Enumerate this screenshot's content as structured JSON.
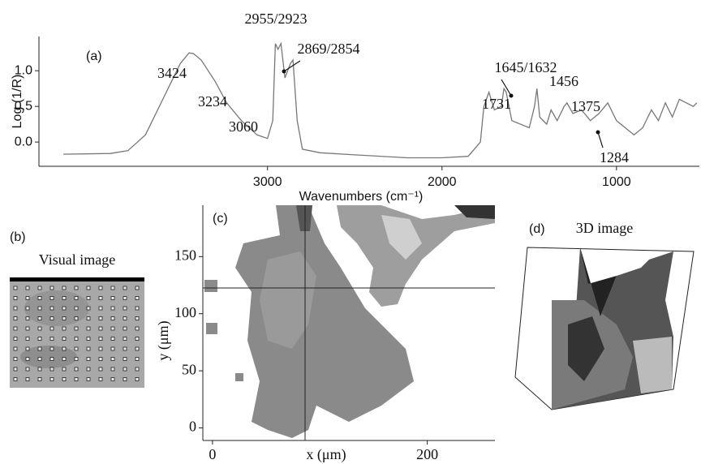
{
  "chart_data": [
    {
      "type": "line",
      "label": "(a)",
      "x_label": "Wavenumbers (cm⁻¹)",
      "y_label": "Log (1/R)",
      "xlim": [
        4310,
        525
      ],
      "ylim": [
        -0.34,
        1.48
      ],
      "xticks": [
        3000,
        2000,
        1000
      ],
      "yticks": [
        {
          "value": 0,
          "label": "0.0"
        },
        0.5,
        {
          "value": 1,
          "label": "1.0"
        }
      ],
      "color": "#777777",
      "x": [
        4170,
        3900,
        3800,
        3700,
        3600,
        3500,
        3450,
        3424,
        3380,
        3300,
        3234,
        3150,
        3060,
        3000,
        2970,
        2955,
        2940,
        2923,
        2900,
        2869,
        2854,
        2830,
        2800,
        2700,
        2500,
        2200,
        2000,
        1850,
        1780,
        1760,
        1731,
        1700,
        1660,
        1645,
        1632,
        1600,
        1500,
        1470,
        1456,
        1440,
        1400,
        1375,
        1340,
        1300,
        1284,
        1250,
        1200,
        1150,
        1100,
        1050,
        1000,
        950,
        900,
        850,
        800,
        760,
        720,
        680,
        640,
        560,
        540
      ],
      "values": [
        -0.17,
        -0.16,
        -0.12,
        0.1,
        0.6,
        1.1,
        1.25,
        1.24,
        1.15,
        0.85,
        0.55,
        0.3,
        0.1,
        0.05,
        0.3,
        1.38,
        1.3,
        1.38,
        0.9,
        1.1,
        1.15,
        0.3,
        -0.1,
        -0.15,
        -0.18,
        -0.22,
        -0.22,
        -0.2,
        0.0,
        0.5,
        0.7,
        0.45,
        0.5,
        0.75,
        0.7,
        0.3,
        0.2,
        0.5,
        0.75,
        0.35,
        0.25,
        0.45,
        0.3,
        0.5,
        0.55,
        0.4,
        0.45,
        0.3,
        0.4,
        0.55,
        0.3,
        0.2,
        0.1,
        0.2,
        0.45,
        0.3,
        0.55,
        0.35,
        0.6,
        0.5,
        0.55
      ],
      "annotations": [
        "3424",
        "3234",
        "3060",
        "2955/2923",
        "2869/2854",
        "1645/1632",
        "1731",
        "1456",
        "1375",
        "1284"
      ]
    },
    {
      "type": "map",
      "label": "(c)",
      "x_label": "x (μm)",
      "y_label": "y (μm)",
      "xlim": [
        -9,
        263
      ],
      "ylim": [
        -11,
        195
      ],
      "xticks": [
        0,
        200
      ],
      "yticks": [
        0,
        50,
        100,
        150
      ]
    }
  ],
  "panels": {
    "b": {
      "label": "(b)",
      "title": "Visual image"
    },
    "d": {
      "label": "(d)",
      "title": "3D image"
    }
  }
}
